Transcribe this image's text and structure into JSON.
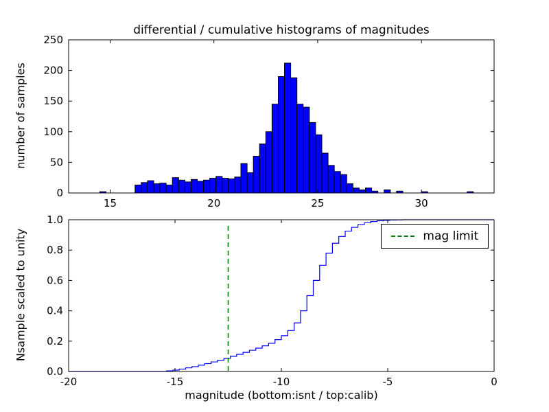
{
  "figure": {
    "background": "#ffffff"
  },
  "chart_data": [
    {
      "type": "bar",
      "title": "differential / cumulative histograms of magnitudes",
      "ylabel": "number of samples",
      "xlim": [
        13.0,
        33.5
      ],
      "ylim": [
        0,
        250
      ],
      "xticks": [
        15,
        20,
        25,
        30
      ],
      "xticklabels": [
        "15",
        "20",
        "25",
        "30"
      ],
      "yticks": [
        0,
        50,
        100,
        150,
        200,
        250
      ],
      "yticklabels": [
        "0",
        "50",
        "100",
        "150",
        "200",
        "250"
      ],
      "bin_width": 0.3,
      "bar_color": "#0000ff",
      "bar_edge_color": "#000000",
      "bins": [
        [
          14.5,
          2
        ],
        [
          16.2,
          13
        ],
        [
          16.5,
          17
        ],
        [
          16.8,
          20
        ],
        [
          17.1,
          15
        ],
        [
          17.4,
          16
        ],
        [
          17.7,
          13
        ],
        [
          18.0,
          25
        ],
        [
          18.3,
          21
        ],
        [
          18.6,
          18
        ],
        [
          18.9,
          22
        ],
        [
          19.2,
          19
        ],
        [
          19.5,
          21
        ],
        [
          19.8,
          24
        ],
        [
          20.1,
          27
        ],
        [
          20.4,
          24
        ],
        [
          20.7,
          23
        ],
        [
          21.0,
          26
        ],
        [
          21.3,
          48
        ],
        [
          21.6,
          33
        ],
        [
          21.9,
          60
        ],
        [
          22.2,
          80
        ],
        [
          22.5,
          100
        ],
        [
          22.8,
          145
        ],
        [
          23.1,
          190
        ],
        [
          23.4,
          212
        ],
        [
          23.7,
          188
        ],
        [
          24.0,
          145
        ],
        [
          24.3,
          140
        ],
        [
          24.6,
          115
        ],
        [
          24.9,
          95
        ],
        [
          25.2,
          65
        ],
        [
          25.5,
          45
        ],
        [
          25.8,
          35
        ],
        [
          26.1,
          30
        ],
        [
          26.4,
          15
        ],
        [
          26.7,
          8
        ],
        [
          27.0,
          5
        ],
        [
          27.3,
          8
        ],
        [
          27.6,
          3
        ],
        [
          28.2,
          5
        ],
        [
          28.8,
          3
        ],
        [
          30.0,
          2
        ],
        [
          32.2,
          2
        ]
      ]
    },
    {
      "type": "line",
      "ylabel": "Nsample scaled to unity",
      "xlabel": "magnitude (bottom:isnt / top:calib)",
      "xlim": [
        -20,
        0
      ],
      "ylim": [
        0.0,
        1.0
      ],
      "xticks": [
        -20,
        -15,
        -10,
        -5,
        0
      ],
      "xticklabels": [
        "-20",
        "-15",
        "-10",
        "-5",
        "0"
      ],
      "yticks": [
        0.0,
        0.2,
        0.4,
        0.6,
        0.8,
        1.0
      ],
      "yticklabels": [
        "0.0",
        "0.2",
        "0.4",
        "0.6",
        "0.8",
        "1.0"
      ],
      "line_color": "#0000ff",
      "step_points": [
        [
          -20,
          0
        ],
        [
          -15.7,
          0
        ],
        [
          -15.4,
          0.004
        ],
        [
          -15.1,
          0.009
        ],
        [
          -14.8,
          0.016
        ],
        [
          -14.5,
          0.024
        ],
        [
          -14.2,
          0.032
        ],
        [
          -13.9,
          0.042
        ],
        [
          -13.6,
          0.052
        ],
        [
          -13.3,
          0.063
        ],
        [
          -13.0,
          0.074
        ],
        [
          -12.7,
          0.086
        ],
        [
          -12.4,
          0.1
        ],
        [
          -12.1,
          0.113
        ],
        [
          -11.8,
          0.126
        ],
        [
          -11.5,
          0.14
        ],
        [
          -11.2,
          0.154
        ],
        [
          -10.9,
          0.169
        ],
        [
          -10.6,
          0.186
        ],
        [
          -10.3,
          0.21
        ],
        [
          -10.0,
          0.236
        ],
        [
          -9.7,
          0.27
        ],
        [
          -9.4,
          0.32
        ],
        [
          -9.1,
          0.4
        ],
        [
          -8.8,
          0.5
        ],
        [
          -8.5,
          0.6
        ],
        [
          -8.2,
          0.7
        ],
        [
          -7.9,
          0.78
        ],
        [
          -7.6,
          0.845
        ],
        [
          -7.3,
          0.89
        ],
        [
          -7.0,
          0.925
        ],
        [
          -6.7,
          0.95
        ],
        [
          -6.4,
          0.968
        ],
        [
          -6.1,
          0.98
        ],
        [
          -5.8,
          0.988
        ],
        [
          -5.5,
          0.993
        ],
        [
          -5.2,
          0.996
        ],
        [
          -4.9,
          0.998
        ],
        [
          -4.6,
          0.999
        ],
        [
          -4.3,
          1.0
        ],
        [
          0,
          1.0
        ]
      ],
      "mag_limit": {
        "x": -12.5,
        "color": "#008000",
        "style": "dashed",
        "label": "mag limit"
      },
      "legend": {
        "position": "upper right",
        "entries": [
          "mag limit"
        ]
      }
    }
  ]
}
